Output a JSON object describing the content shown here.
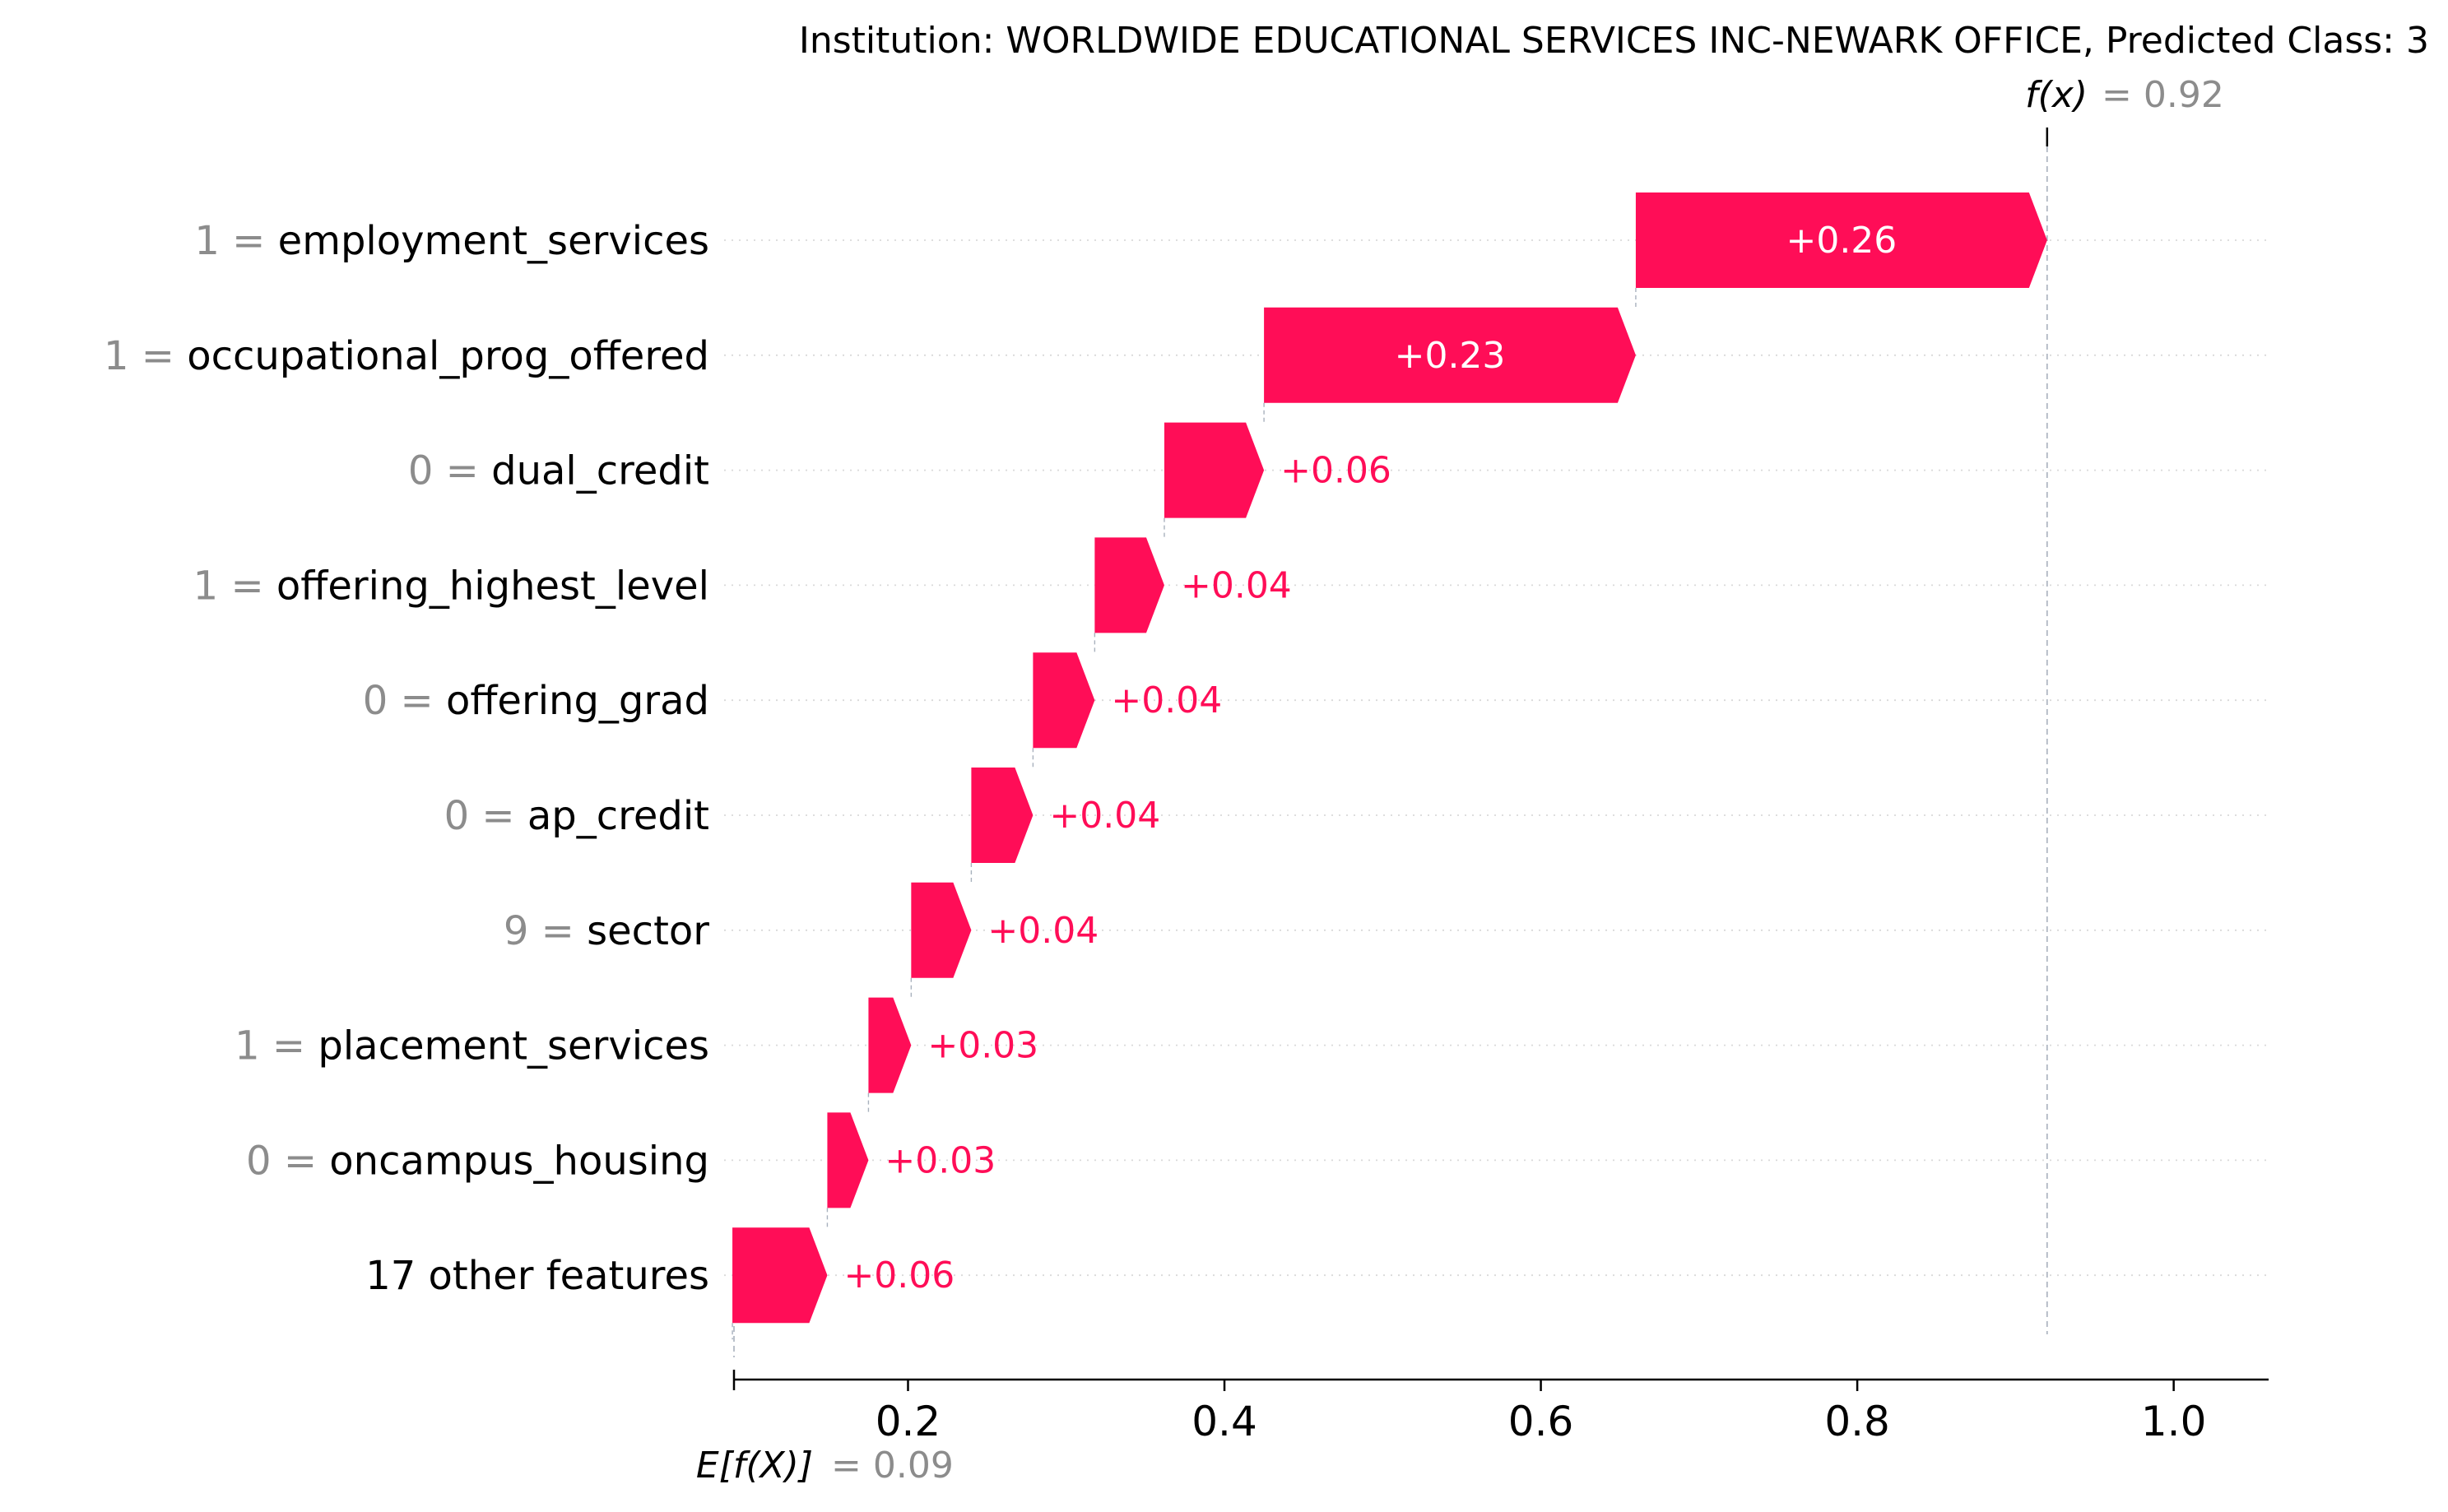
{
  "chart_data": {
    "type": "waterfall",
    "title": "Institution: WORLDWIDE EDUCATIONAL SERVICES INC-NEWARK OFFICE, Predicted Class: 3",
    "fx": {
      "label": "f(x)",
      "eq": "= 0.92",
      "value": 0.92
    },
    "efx": {
      "label": "E[f(X)]",
      "eq": "= 0.09",
      "value": 0.09
    },
    "xlim": [
      0.09,
      1.06
    ],
    "xticks": [
      {
        "value": 0.2,
        "label": "0.2"
      },
      {
        "value": 0.4,
        "label": "0.4"
      },
      {
        "value": 0.6,
        "label": "0.6"
      },
      {
        "value": 0.8,
        "label": "0.8"
      },
      {
        "value": 1.0,
        "label": "1.0"
      }
    ],
    "features": [
      {
        "value": "1 =",
        "name": "employment_services",
        "contribution": 0.26,
        "label": "+0.26",
        "start": 0.66,
        "end": 0.92
      },
      {
        "value": "1 =",
        "name": "occupational_prog_offered",
        "contribution": 0.23,
        "label": "+0.23",
        "start": 0.425,
        "end": 0.66
      },
      {
        "value": "0 =",
        "name": "dual_credit",
        "contribution": 0.06,
        "label": "+0.06",
        "start": 0.362,
        "end": 0.425
      },
      {
        "value": "1 =",
        "name": "offering_highest_level",
        "contribution": 0.04,
        "label": "+0.04",
        "start": 0.318,
        "end": 0.362
      },
      {
        "value": "0 =",
        "name": "offering_grad",
        "contribution": 0.04,
        "label": "+0.04",
        "start": 0.279,
        "end": 0.318
      },
      {
        "value": "0 =",
        "name": "ap_credit",
        "contribution": 0.04,
        "label": "+0.04",
        "start": 0.24,
        "end": 0.279
      },
      {
        "value": "9 =",
        "name": "sector",
        "contribution": 0.04,
        "label": "+0.04",
        "start": 0.202,
        "end": 0.24
      },
      {
        "value": "1 =",
        "name": "placement_services",
        "contribution": 0.03,
        "label": "+0.03",
        "start": 0.175,
        "end": 0.202
      },
      {
        "value": "0 =",
        "name": "oncampus_housing",
        "contribution": 0.03,
        "label": "+0.03",
        "start": 0.149,
        "end": 0.175
      },
      {
        "value": "",
        "name": "17 other features",
        "contribution": 0.06,
        "label": "+0.06",
        "start": 0.089,
        "end": 0.149
      }
    ],
    "colors": {
      "positive": "#ff0d57",
      "value_text": "#8c8c8c",
      "label_text": "#000000",
      "bar_text_inside": "#ffffff",
      "grid": "#d9d9d9",
      "vline": "#a8b1bd"
    },
    "grid": true
  }
}
